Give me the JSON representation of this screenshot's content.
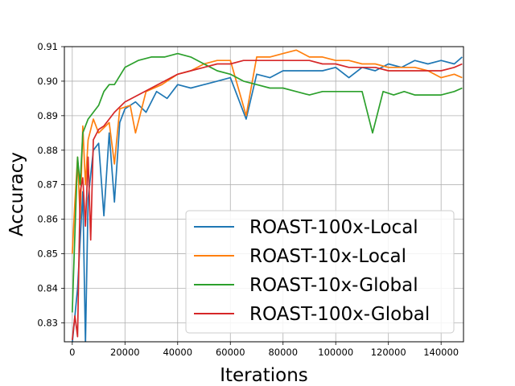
{
  "chart_data": {
    "type": "line",
    "title": "",
    "xlabel": "Iterations",
    "ylabel": "Accuracy",
    "xlim": [
      -3000,
      148500
    ],
    "ylim": [
      0.8245,
      0.91
    ],
    "x_ticks": [
      0,
      20000,
      40000,
      60000,
      80000,
      100000,
      120000,
      140000
    ],
    "y_ticks": [
      0.83,
      0.84,
      0.85,
      0.86,
      0.87,
      0.88,
      0.89,
      0.9,
      0.91
    ],
    "y_tick_labels": [
      "0.83",
      "0.84",
      "0.85",
      "0.86",
      "0.87",
      "0.88",
      "0.89",
      "0.90",
      "0.91"
    ],
    "grid": true,
    "legend_position": "lower-right",
    "series": [
      {
        "name": "ROAST-100x-Local",
        "color": "#1f77b4",
        "points": [
          [
            0,
            0.824
          ],
          [
            2000,
            0.84
          ],
          [
            4000,
            0.868
          ],
          [
            5000,
            0.824
          ],
          [
            6000,
            0.866
          ],
          [
            8000,
            0.88
          ],
          [
            10000,
            0.882
          ],
          [
            12000,
            0.861
          ],
          [
            14000,
            0.885
          ],
          [
            16000,
            0.865
          ],
          [
            18000,
            0.888
          ],
          [
            20000,
            0.892
          ],
          [
            24000,
            0.894
          ],
          [
            28000,
            0.891
          ],
          [
            32000,
            0.897
          ],
          [
            36000,
            0.895
          ],
          [
            40000,
            0.899
          ],
          [
            45000,
            0.898
          ],
          [
            50000,
            0.899
          ],
          [
            55000,
            0.9
          ],
          [
            60000,
            0.901
          ],
          [
            66000,
            0.889
          ],
          [
            70000,
            0.902
          ],
          [
            75000,
            0.901
          ],
          [
            80000,
            0.903
          ],
          [
            85000,
            0.903
          ],
          [
            90000,
            0.903
          ],
          [
            95000,
            0.903
          ],
          [
            100000,
            0.904
          ],
          [
            105000,
            0.901
          ],
          [
            110000,
            0.904
          ],
          [
            115000,
            0.903
          ],
          [
            120000,
            0.905
          ],
          [
            125000,
            0.904
          ],
          [
            130000,
            0.906
          ],
          [
            135000,
            0.905
          ],
          [
            140000,
            0.906
          ],
          [
            145000,
            0.905
          ],
          [
            148000,
            0.907
          ]
        ]
      },
      {
        "name": "ROAST-10x-Local",
        "color": "#ff7f0e",
        "points": [
          [
            0,
            0.85
          ],
          [
            1000,
            0.865
          ],
          [
            2000,
            0.878
          ],
          [
            3000,
            0.86
          ],
          [
            4000,
            0.887
          ],
          [
            5000,
            0.87
          ],
          [
            6000,
            0.883
          ],
          [
            8000,
            0.889
          ],
          [
            10000,
            0.885
          ],
          [
            14000,
            0.888
          ],
          [
            16000,
            0.876
          ],
          [
            18000,
            0.892
          ],
          [
            22000,
            0.893
          ],
          [
            24000,
            0.885
          ],
          [
            28000,
            0.897
          ],
          [
            34000,
            0.899
          ],
          [
            40000,
            0.902
          ],
          [
            45000,
            0.903
          ],
          [
            50000,
            0.905
          ],
          [
            55000,
            0.906
          ],
          [
            60000,
            0.906
          ],
          [
            66000,
            0.89
          ],
          [
            70000,
            0.907
          ],
          [
            75000,
            0.907
          ],
          [
            80000,
            0.908
          ],
          [
            85000,
            0.909
          ],
          [
            90000,
            0.907
          ],
          [
            95000,
            0.907
          ],
          [
            100000,
            0.906
          ],
          [
            105000,
            0.906
          ],
          [
            110000,
            0.905
          ],
          [
            115000,
            0.905
          ],
          [
            120000,
            0.904
          ],
          [
            125000,
            0.904
          ],
          [
            130000,
            0.904
          ],
          [
            135000,
            0.903
          ],
          [
            140000,
            0.901
          ],
          [
            145000,
            0.902
          ],
          [
            148000,
            0.901
          ]
        ]
      },
      {
        "name": "ROAST-10x-Global",
        "color": "#2ca02c",
        "points": [
          [
            0,
            0.833
          ],
          [
            1000,
            0.856
          ],
          [
            2000,
            0.878
          ],
          [
            3000,
            0.87
          ],
          [
            4000,
            0.885
          ],
          [
            6000,
            0.889
          ],
          [
            8000,
            0.891
          ],
          [
            10000,
            0.893
          ],
          [
            12000,
            0.897
          ],
          [
            14000,
            0.899
          ],
          [
            16000,
            0.899
          ],
          [
            20000,
            0.904
          ],
          [
            25000,
            0.906
          ],
          [
            30000,
            0.907
          ],
          [
            35000,
            0.907
          ],
          [
            40000,
            0.908
          ],
          [
            45000,
            0.907
          ],
          [
            50000,
            0.905
          ],
          [
            55000,
            0.903
          ],
          [
            60000,
            0.902
          ],
          [
            65000,
            0.9
          ],
          [
            70000,
            0.899
          ],
          [
            75000,
            0.898
          ],
          [
            80000,
            0.898
          ],
          [
            85000,
            0.897
          ],
          [
            90000,
            0.896
          ],
          [
            95000,
            0.897
          ],
          [
            100000,
            0.897
          ],
          [
            105000,
            0.897
          ],
          [
            110000,
            0.897
          ],
          [
            114000,
            0.885
          ],
          [
            118000,
            0.897
          ],
          [
            122000,
            0.896
          ],
          [
            126000,
            0.897
          ],
          [
            130000,
            0.896
          ],
          [
            135000,
            0.896
          ],
          [
            140000,
            0.896
          ],
          [
            145000,
            0.897
          ],
          [
            148000,
            0.898
          ]
        ]
      },
      {
        "name": "ROAST-100x-Global",
        "color": "#d62728",
        "points": [
          [
            0,
            0.825
          ],
          [
            1000,
            0.832
          ],
          [
            2000,
            0.826
          ],
          [
            3000,
            0.868
          ],
          [
            4000,
            0.872
          ],
          [
            5000,
            0.858
          ],
          [
            6000,
            0.878
          ],
          [
            7000,
            0.854
          ],
          [
            8000,
            0.883
          ],
          [
            10000,
            0.886
          ],
          [
            12000,
            0.887
          ],
          [
            14000,
            0.889
          ],
          [
            16000,
            0.891
          ],
          [
            20000,
            0.894
          ],
          [
            25000,
            0.896
          ],
          [
            30000,
            0.898
          ],
          [
            35000,
            0.9
          ],
          [
            40000,
            0.902
          ],
          [
            45000,
            0.903
          ],
          [
            50000,
            0.904
          ],
          [
            55000,
            0.905
          ],
          [
            60000,
            0.905
          ],
          [
            65000,
            0.906
          ],
          [
            70000,
            0.906
          ],
          [
            75000,
            0.906
          ],
          [
            80000,
            0.906
          ],
          [
            85000,
            0.906
          ],
          [
            90000,
            0.906
          ],
          [
            95000,
            0.905
          ],
          [
            100000,
            0.905
          ],
          [
            105000,
            0.904
          ],
          [
            110000,
            0.904
          ],
          [
            115000,
            0.904
          ],
          [
            120000,
            0.903
          ],
          [
            125000,
            0.903
          ],
          [
            130000,
            0.903
          ],
          [
            135000,
            0.903
          ],
          [
            140000,
            0.903
          ],
          [
            145000,
            0.904
          ],
          [
            148000,
            0.905
          ]
        ]
      }
    ]
  }
}
